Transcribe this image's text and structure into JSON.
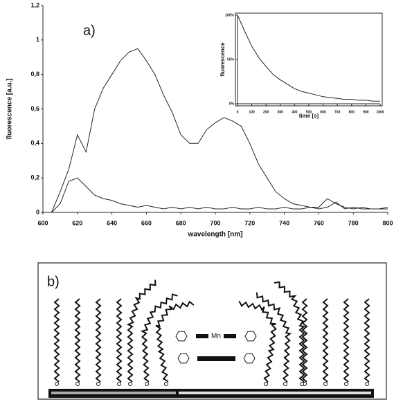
{
  "chart_data": [
    {
      "type": "line",
      "annotation": "a)",
      "x_label": "wavelength [nm]",
      "y_label": "fluorescence [a.u.]",
      "x": [
        600,
        605,
        610,
        615,
        620,
        625,
        630,
        635,
        640,
        645,
        650,
        655,
        660,
        665,
        670,
        675,
        680,
        685,
        690,
        695,
        700,
        705,
        710,
        715,
        720,
        725,
        730,
        735,
        740,
        745,
        750,
        755,
        760,
        765,
        770,
        775,
        780,
        785,
        790,
        795,
        800
      ],
      "series": [
        {
          "color": "#222",
          "values": [
            0,
            0,
            0.12,
            0.25,
            0.45,
            0.35,
            0.6,
            0.72,
            0.8,
            0.88,
            0.93,
            0.95,
            0.88,
            0.8,
            0.68,
            0.58,
            0.45,
            0.4,
            0.4,
            0.48,
            0.52,
            0.55,
            0.53,
            0.5,
            0.4,
            0.28,
            0.2,
            0.12,
            0.08,
            0.05,
            0.04,
            0.03,
            0.02,
            0.03,
            0.06,
            0.02,
            0.03,
            0.02,
            0.02,
            0.02,
            0.03
          ]
        },
        {
          "color": "#222",
          "values": [
            0,
            0,
            0.05,
            0.18,
            0.2,
            0.15,
            0.1,
            0.08,
            0.07,
            0.05,
            0.04,
            0.03,
            0.04,
            0.03,
            0.02,
            0.03,
            0.02,
            0.03,
            0.02,
            0.03,
            0.02,
            0.02,
            0.03,
            0.02,
            0.02,
            0.03,
            0.02,
            0.02,
            0.03,
            0.02,
            0.02,
            0.03,
            0.03,
            0.08,
            0.05,
            0.03,
            0.02,
            0.03,
            0.02,
            0.02,
            0.02
          ]
        }
      ],
      "xlim": [
        600,
        800
      ],
      "xticks": [
        600,
        620,
        640,
        660,
        680,
        700,
        720,
        740,
        760,
        780,
        800
      ],
      "ylim": [
        0,
        1.2
      ],
      "yticks": [
        0,
        {
          "value": 0.2,
          "label": "0,2"
        },
        {
          "value": 0.4,
          "label": "0,4"
        },
        {
          "value": 0.6,
          "label": "0,6"
        },
        {
          "value": 0.8,
          "label": "0,8"
        },
        1,
        {
          "value": 1.2,
          "label": "1,2"
        }
      ],
      "grid": false
    },
    {
      "type": "line",
      "x_label": "time [s]",
      "y_label": "fluorescence",
      "x": [
        0,
        50,
        100,
        150,
        200,
        250,
        300,
        350,
        400,
        450,
        500,
        550,
        600,
        650,
        700,
        750,
        800,
        850,
        900,
        950,
        1000
      ],
      "series": [
        {
          "color": "#222",
          "values": [
            100,
            82,
            65,
            52,
            42,
            33,
            27,
            22,
            17,
            14,
            12,
            10,
            8,
            7,
            6,
            5,
            5,
            4,
            4,
            3,
            3
          ]
        }
      ],
      "xlim": [
        0,
        1000
      ],
      "xticks": [
        0,
        100,
        200,
        300,
        400,
        500,
        600,
        700,
        800,
        900,
        1000
      ],
      "ylim": [
        0,
        100
      ],
      "yticks": [
        {
          "value": 0,
          "label": "0%"
        },
        {
          "value": 50,
          "label": "50%"
        },
        {
          "value": 100,
          "label": "100%"
        }
      ],
      "grid": false
    }
  ],
  "panel_b": {
    "label": "b)",
    "metal": "Mn"
  }
}
